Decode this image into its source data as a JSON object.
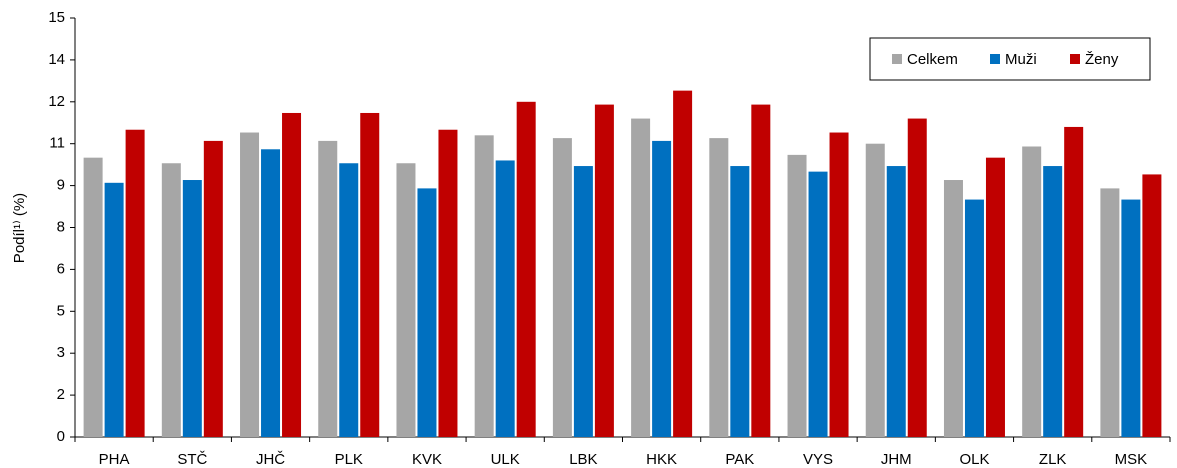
{
  "chart_data": {
    "type": "bar",
    "ylabel": "Podíl¹⁾ (%)",
    "categories": [
      "PHA",
      "STČ",
      "JHČ",
      "PLK",
      "KVK",
      "ULK",
      "LBK",
      "HKK",
      "PAK",
      "VYS",
      "JHM",
      "OLK",
      "ZLK",
      "MSK"
    ],
    "series": [
      {
        "name": "Celkem",
        "color": "#a6a6a6",
        "values": [
          10.0,
          9.8,
          10.9,
          10.6,
          9.8,
          10.8,
          10.7,
          11.4,
          10.7,
          10.1,
          10.5,
          9.2,
          10.4,
          8.9
        ]
      },
      {
        "name": "Muži",
        "color": "#0070c0",
        "values": [
          9.1,
          9.2,
          10.3,
          9.8,
          8.9,
          9.9,
          9.7,
          10.6,
          9.7,
          9.5,
          9.7,
          8.5,
          9.7,
          8.5
        ]
      },
      {
        "name": "Ženy",
        "color": "#c00000",
        "values": [
          11.0,
          10.6,
          11.6,
          11.6,
          11.0,
          12.0,
          11.9,
          12.4,
          11.9,
          10.9,
          11.4,
          10.0,
          11.1,
          9.4
        ]
      }
    ],
    "ylim": [
      0,
      15
    ],
    "yticks": [
      0,
      {
        "value": 1.5,
        "label": "2"
      },
      3,
      {
        "value": 4.5,
        "label": "5"
      },
      6,
      {
        "value": 7.5,
        "label": "8"
      },
      9,
      {
        "value": 10.5,
        "label": "11"
      },
      12,
      {
        "value": 13.5,
        "label": "14"
      },
      15
    ],
    "grid": false,
    "legend": "upper right"
  }
}
